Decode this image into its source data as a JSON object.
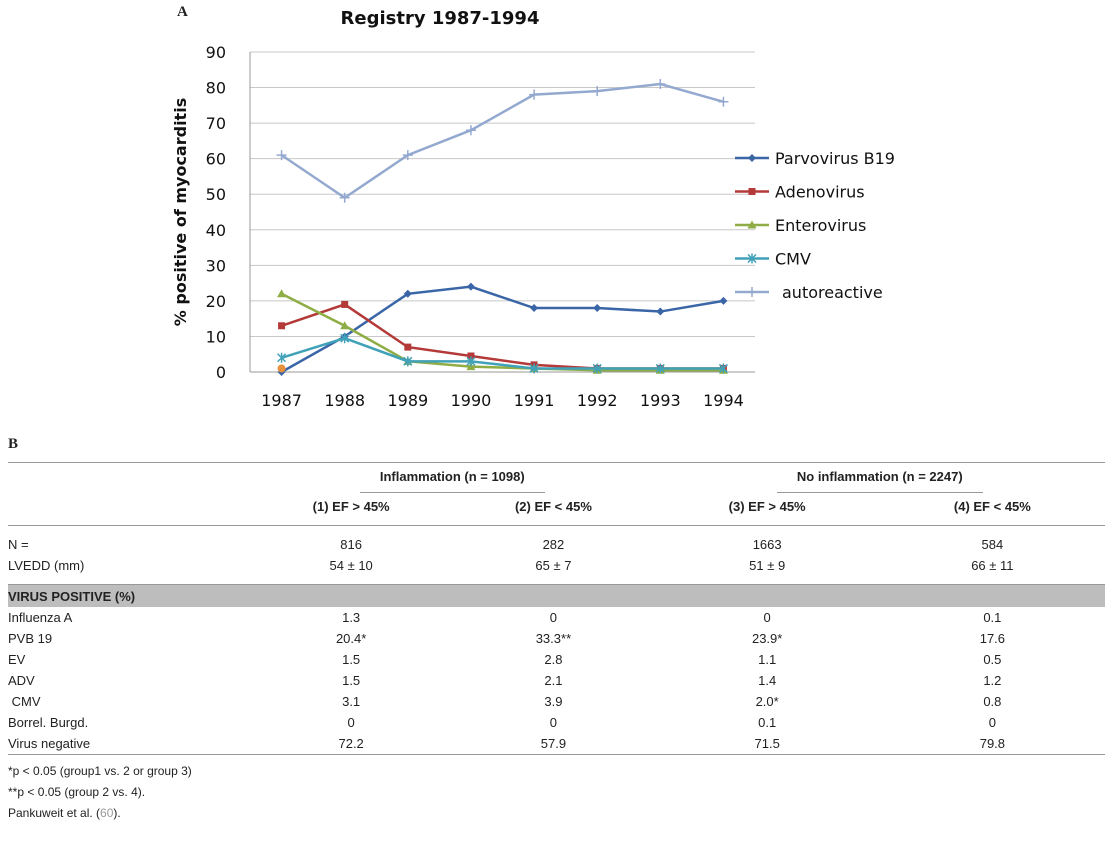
{
  "panel_a_label": "A",
  "panel_b_label": "B",
  "chart_data": {
    "type": "line",
    "title": "Registry 1987-1994",
    "xlabel": "",
    "ylabel": "% positive of myocarditis",
    "ylim": [
      0,
      90
    ],
    "yticks": [
      0,
      10,
      20,
      30,
      40,
      50,
      60,
      70,
      80,
      90
    ],
    "categories": [
      "1987",
      "1988",
      "1989",
      "1990",
      "1991",
      "1992",
      "1993",
      "1994"
    ],
    "grid": true,
    "legend": "right",
    "series": [
      {
        "name": "Parvovirus B19",
        "color": "#3a66a7",
        "marker": "diamond",
        "values": [
          0,
          10,
          22,
          24,
          18,
          18,
          17,
          20
        ]
      },
      {
        "name": "Adenovirus",
        "color": "#b33a38",
        "marker": "square",
        "values": [
          13,
          19,
          7,
          4.5,
          2,
          1,
          1,
          1
        ]
      },
      {
        "name": "Enterovirus",
        "color": "#8fad45",
        "marker": "triangle",
        "values": [
          22,
          13,
          3,
          1.5,
          1,
          0.5,
          0.5,
          0.5
        ]
      },
      {
        "name": "CMV",
        "color": "#40a1b8",
        "marker": "asterisk",
        "values": [
          4,
          9.5,
          3,
          3,
          1,
          1,
          1,
          1
        ]
      },
      {
        "name": "autoreactive",
        "color": "#94a9cf",
        "marker": "plus",
        "values": [
          61,
          49,
          61,
          68,
          78,
          79,
          81,
          76
        ]
      }
    ],
    "extra_point": {
      "x": "1987",
      "y": 1,
      "color": "#e8903c"
    }
  },
  "table": {
    "groups": [
      {
        "label": "Inflammation (n = 1098)"
      },
      {
        "label": "No inflammation (n = 2247)"
      }
    ],
    "subheaders": [
      "(1) EF > 45%",
      "(2) EF < 45%",
      "(3) EF > 45%",
      "(4) EF < 45%"
    ],
    "top_rows": [
      {
        "label": "N =",
        "values": [
          "816",
          "282",
          "1663",
          "584"
        ]
      },
      {
        "label": "LVEDD (mm)",
        "values": [
          "54 ± 10",
          "65 ± 7",
          "51 ± 9",
          "66 ± 11"
        ]
      }
    ],
    "section_title": "VIRUS POSITIVE (%)",
    "virus_rows": [
      {
        "label": "Influenza A",
        "values": [
          "1.3",
          "0",
          "0",
          "0.1"
        ]
      },
      {
        "label": "PVB 19",
        "values": [
          "20.4*",
          "33.3**",
          "23.9*",
          "17.6"
        ]
      },
      {
        "label": "EV",
        "values": [
          "1.5",
          "2.8",
          "1.1",
          "0.5"
        ]
      },
      {
        "label": "ADV",
        "values": [
          "1.5",
          "2.1",
          "1.4",
          "1.2"
        ]
      },
      {
        "label": " CMV",
        "values": [
          "3.1",
          "3.9",
          "2.0*",
          "0.8"
        ]
      },
      {
        "label": "Borrel. Burgd.",
        "values": [
          "0",
          "0",
          "0.1",
          "0"
        ]
      },
      {
        "label": "Virus negative",
        "values": [
          "72.2",
          "57.9",
          "71.5",
          "79.8"
        ]
      }
    ],
    "footnotes": {
      "note1": "*p < 0.05 (group1 vs. 2 or group 3)",
      "note2": "**p < 0.05 (group 2 vs. 4).",
      "source_prefix": "Pankuweit et al. (",
      "source_ref": "60",
      "source_suffix": ")."
    }
  }
}
